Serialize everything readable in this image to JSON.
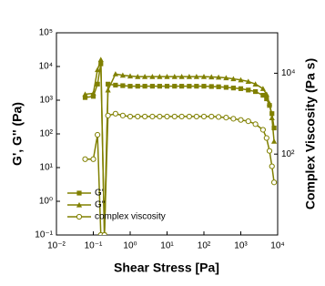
{
  "chart_data": {
    "type": "line",
    "log_x": true,
    "log_y": true,
    "legend": "lower left",
    "xlabel": "Shear Stress [Pa]",
    "ylabel": "G', G'' (Pa)",
    "y2label": "Complex Viscosity (Pa s)",
    "xlim": [
      0.01,
      10000
    ],
    "xticks": [
      {
        "value": 0.01,
        "label": "10⁻²"
      },
      {
        "value": 0.1,
        "label": "10⁻¹"
      },
      {
        "value": 1,
        "label": "10⁰"
      },
      {
        "value": 10,
        "label": "10¹"
      },
      {
        "value": 100,
        "label": "10²"
      },
      {
        "value": 1000,
        "label": "10³"
      },
      {
        "value": 10000,
        "label": "10⁴"
      }
    ],
    "ylim": [
      0.1,
      100000
    ],
    "yticks": [
      {
        "value": 0.1,
        "label": "10⁻¹"
      },
      {
        "value": 1,
        "label": "10⁰"
      },
      {
        "value": 10,
        "label": "10¹"
      },
      {
        "value": 100,
        "label": "10²"
      },
      {
        "value": 1000,
        "label": "10³"
      },
      {
        "value": 10000,
        "label": "10⁴"
      },
      {
        "value": 100000,
        "label": "10⁵"
      }
    ],
    "y2lim": [
      1,
      100000
    ],
    "y2ticks": [
      {
        "value": 100,
        "label": "10²"
      },
      {
        "value": 10000,
        "label": "10⁴"
      }
    ],
    "x": [
      0.06,
      0.1,
      0.13,
      0.16,
      0.2,
      0.25,
      0.4,
      0.63,
      1,
      1.6,
      2.5,
      4,
      6.3,
      10,
      16,
      25,
      40,
      63,
      100,
      160,
      250,
      400,
      630,
      1000,
      1600,
      2500,
      4000,
      5000,
      6000,
      7000,
      8000
    ],
    "series": [
      {
        "name": "G'",
        "color": "#808000",
        "marker": "square",
        "values": [
          1200,
          1300,
          3000,
          12000,
          0.1,
          3000,
          2800,
          2700,
          2600,
          2600,
          2600,
          2600,
          2600,
          2600,
          2600,
          2600,
          2600,
          2600,
          2600,
          2550,
          2500,
          2400,
          2300,
          2200,
          2000,
          1800,
          1400,
          1100,
          700,
          400,
          150
        ]
      },
      {
        "name": "G''",
        "color": "#808000",
        "marker": "triangle",
        "values": [
          1500,
          1600,
          8000,
          16000,
          0.1,
          2000,
          6000,
          5500,
          5200,
          5000,
          5000,
          5000,
          5000,
          5000,
          5000,
          5000,
          5000,
          5000,
          5000,
          4900,
          4800,
          4600,
          4300,
          4000,
          3600,
          3000,
          2200,
          1500,
          800,
          300,
          60
        ]
      },
      {
        "name": "complex viscosity",
        "color": "#808000",
        "marker": "circle",
        "axis": "y2",
        "values": [
          75,
          75,
          300,
          1,
          1,
          900,
          1000,
          900,
          850,
          850,
          850,
          850,
          850,
          850,
          850,
          850,
          850,
          850,
          850,
          850,
          830,
          800,
          750,
          700,
          650,
          550,
          400,
          250,
          120,
          50,
          20
        ]
      }
    ]
  }
}
